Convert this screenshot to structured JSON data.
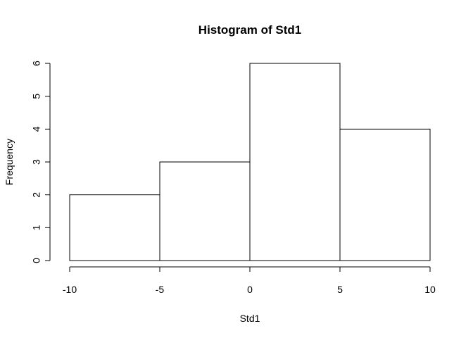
{
  "chart_data": {
    "type": "bar",
    "subtype": "histogram",
    "title": "Histogram of Std1",
    "xlabel": "Std1",
    "ylabel": "Frequency",
    "bins": [
      {
        "from": -10,
        "to": -5,
        "count": 2
      },
      {
        "from": -5,
        "to": 0,
        "count": 3
      },
      {
        "from": 0,
        "to": 5,
        "count": 6
      },
      {
        "from": 5,
        "to": 10,
        "count": 4
      }
    ],
    "xlim": [
      -10,
      10
    ],
    "ylim": [
      0,
      6
    ],
    "xticks": [
      -10,
      -5,
      0,
      5,
      10
    ],
    "xtick_labels": [
      "-10",
      "-5",
      "0",
      "5",
      "10"
    ],
    "yticks": [
      0,
      1,
      2,
      3,
      4,
      5,
      6
    ],
    "ytick_labels": [
      "0",
      "1",
      "2",
      "3",
      "4",
      "5",
      "6"
    ],
    "grid": false,
    "bar_fill": "#ffffff",
    "bar_stroke": "#000000"
  }
}
